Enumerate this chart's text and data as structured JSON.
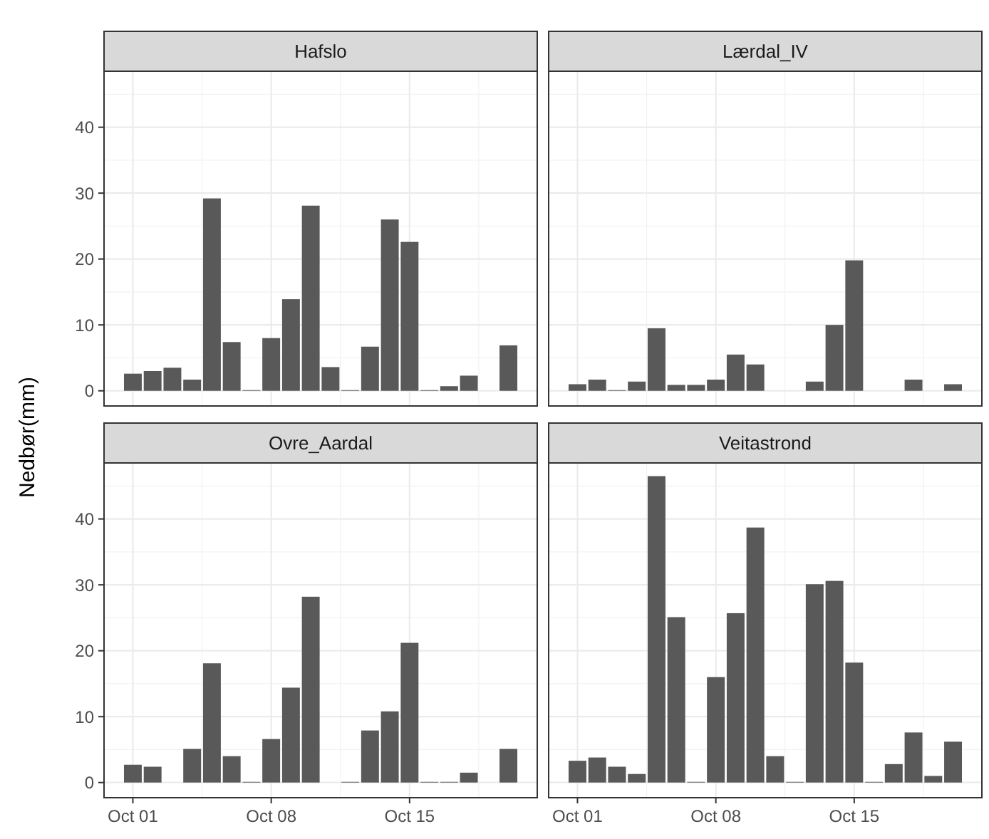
{
  "chart_data": [
    {
      "type": "bar",
      "title": "Hafslo",
      "x": [
        "--10-01",
        "--10-02",
        "--10-03",
        "--10-04",
        "--10-05",
        "--10-06",
        "--10-07",
        "--10-08",
        "--10-09",
        "--10-10",
        "--10-11",
        "--10-12",
        "--10-13",
        "--10-14",
        "--10-15",
        "--10-16",
        "--10-17",
        "--10-18",
        "--10-19",
        "--10-20"
      ],
      "values": [
        2.6,
        3.0,
        3.5,
        1.7,
        29.2,
        7.4,
        0.1,
        8.0,
        13.9,
        28.1,
        3.6,
        0.1,
        6.7,
        26.0,
        22.6,
        0.1,
        0.7,
        2.3,
        null,
        6.9
      ],
      "color": "#595959",
      "xlim": [
        "--09-29T13:00",
        "--10-21T11:00"
      ],
      "xticks": [
        {
          "value": "--10-01",
          "label": null
        },
        {
          "value": "--10-08",
          "label": null
        },
        {
          "value": "--10-15",
          "label": null
        }
      ],
      "ylim": [
        -2.3,
        48.5
      ],
      "yticks": [
        0,
        10,
        20,
        30,
        40
      ],
      "grid": true,
      "tick_labels": "y"
    },
    {
      "type": "bar",
      "title": "Lærdal_IV",
      "x": [
        "--10-01",
        "--10-02",
        "--10-03",
        "--10-04",
        "--10-05",
        "--10-06",
        "--10-07",
        "--10-08",
        "--10-09",
        "--10-10",
        "--10-11",
        "--10-12",
        "--10-13",
        "--10-14",
        "--10-15",
        "--10-16",
        "--10-17",
        "--10-18",
        "--10-19",
        "--10-20"
      ],
      "values": [
        1.0,
        1.7,
        0.1,
        1.4,
        9.5,
        0.9,
        0.9,
        1.7,
        5.5,
        4.0,
        0,
        0,
        1.4,
        10.0,
        19.8,
        null,
        0,
        1.7,
        0,
        1.0
      ],
      "color": "#595959",
      "xlim": [
        "--09-29T13:00",
        "--10-21T11:00"
      ],
      "xticks": [
        {
          "value": "--10-01",
          "label": null
        },
        {
          "value": "--10-08",
          "label": null
        },
        {
          "value": "--10-15",
          "label": null
        }
      ],
      "ylim": [
        -2.3,
        48.5
      ],
      "yticks": [
        0,
        10,
        20,
        30,
        40
      ],
      "grid": true,
      "tick_labels": false
    },
    {
      "type": "bar",
      "title": "Ovre_Aardal",
      "ylabel": "Nedbør(mm)",
      "x": [
        "--10-01",
        "--10-02",
        "--10-03",
        "--10-04",
        "--10-05",
        "--10-06",
        "--10-07",
        "--10-08",
        "--10-09",
        "--10-10",
        "--10-11",
        "--10-12",
        "--10-13",
        "--10-14",
        "--10-15",
        "--10-16",
        "--10-17",
        "--10-18",
        "--10-19",
        "--10-20"
      ],
      "values": [
        2.7,
        2.4,
        null,
        5.1,
        18.1,
        4.0,
        0.1,
        6.6,
        14.4,
        28.2,
        null,
        0.1,
        7.9,
        10.8,
        21.2,
        0.1,
        0.1,
        1.5,
        null,
        5.1
      ],
      "color": "#595959",
      "xlim": [
        "--09-29T13:00",
        "--10-21T11:00"
      ],
      "xticks": [
        {
          "value": "--10-01",
          "label": "Oct 01"
        },
        {
          "value": "--10-08",
          "label": "Oct 08"
        },
        {
          "value": "--10-15",
          "label": "Oct 15"
        }
      ],
      "ylim": [
        -2.3,
        48.5
      ],
      "yticks": [
        0,
        10,
        20,
        30,
        40
      ],
      "grid": true
    },
    {
      "type": "bar",
      "title": "Veitastrond",
      "x": [
        "--10-01",
        "--10-02",
        "--10-03",
        "--10-04",
        "--10-05",
        "--10-06",
        "--10-07",
        "--10-08",
        "--10-09",
        "--10-10",
        "--10-11",
        "--10-12",
        "--10-13",
        "--10-14",
        "--10-15",
        "--10-16",
        "--10-17",
        "--10-18",
        "--10-19",
        "--10-20"
      ],
      "values": [
        3.3,
        3.8,
        2.4,
        1.3,
        46.5,
        25.1,
        0.1,
        16.0,
        25.7,
        38.7,
        4.0,
        0.1,
        30.1,
        30.6,
        18.2,
        0.1,
        2.8,
        7.6,
        1.0,
        6.2
      ],
      "color": "#595959",
      "xlim": [
        "--09-29T13:00",
        "--10-21T11:00"
      ],
      "xticks": [
        {
          "value": "--10-01",
          "label": "Oct 01"
        },
        {
          "value": "--10-08",
          "label": "Oct 08"
        },
        {
          "value": "--10-15",
          "label": "Oct 15"
        }
      ],
      "ylim": [
        -2.3,
        48.5
      ],
      "yticks": [
        0,
        10,
        20,
        30,
        40
      ],
      "grid": true,
      "tick_labels": "x"
    }
  ]
}
